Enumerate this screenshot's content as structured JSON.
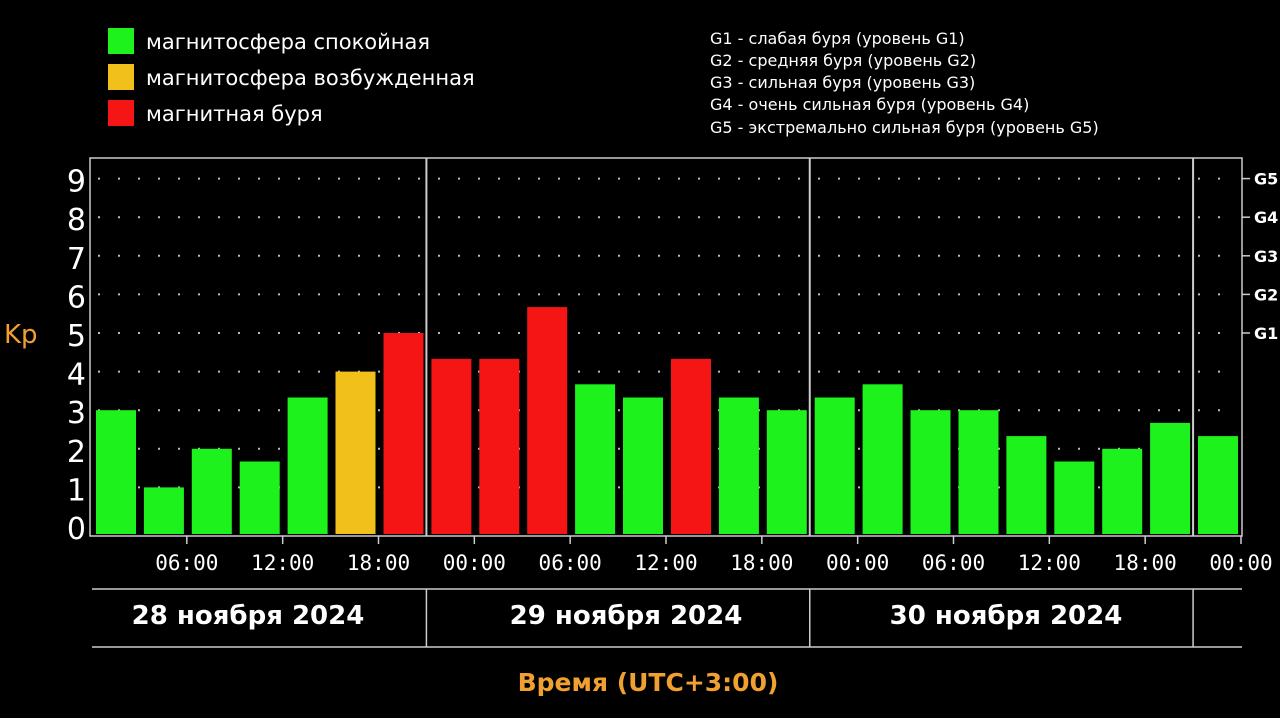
{
  "legend": [
    {
      "label": "магнитосфера спокойная",
      "color": "#1df21d"
    },
    {
      "label": "магнитосфера возбужденная",
      "color": "#f2c01a"
    },
    {
      "label": "магнитная буря",
      "color": "#f51515"
    }
  ],
  "storm_levels": [
    "G1 - слабая буря (уровень G1)",
    "G2 - средняя буря (уровень G2)",
    "G3 - сильная буря (уровень G3)",
    "G4 - очень сильная буря (уровень G4)",
    "G5 - экстремально сильная буря (уровень G5)"
  ],
  "colors": {
    "background": "#000000",
    "accent": "#f0a030",
    "text": "#ffffff",
    "grid": "#bbbbbb"
  },
  "chart_data": {
    "type": "bar",
    "ylabel": "Kp",
    "xlabel": "Время (UTC+3:00)",
    "ylim": [
      0,
      9
    ],
    "y_ticks": [
      "0",
      "1",
      "2",
      "3",
      "4",
      "5",
      "6",
      "7",
      "8",
      "9"
    ],
    "right_ticks": [
      {
        "label": "G1",
        "value": 5
      },
      {
        "label": "G2",
        "value": 6
      },
      {
        "label": "G3",
        "value": 7
      },
      {
        "label": "G4",
        "value": 8
      },
      {
        "label": "G5",
        "value": 9
      }
    ],
    "grid": true,
    "x_tick_labels": [
      "06:00",
      "12:00",
      "18:00",
      "00:00",
      "06:00",
      "12:00",
      "18:00",
      "00:00",
      "06:00",
      "12:00",
      "18:00",
      "00:00"
    ],
    "dates": [
      "28 ноября 2024",
      "29 ноября 2024",
      "30 ноября 2024"
    ],
    "bars": [
      {
        "x": "28.11 03:00",
        "value": 3.0,
        "level": "quiet"
      },
      {
        "x": "28.11 06:00",
        "value": 1.0,
        "level": "quiet"
      },
      {
        "x": "28.11 09:00",
        "value": 2.0,
        "level": "quiet"
      },
      {
        "x": "28.11 12:00",
        "value": 1.67,
        "level": "quiet"
      },
      {
        "x": "28.11 15:00",
        "value": 3.33,
        "level": "quiet"
      },
      {
        "x": "28.11 18:00",
        "value": 4.0,
        "level": "active"
      },
      {
        "x": "28.11 21:00",
        "value": 5.0,
        "level": "storm"
      },
      {
        "x": "29.11 00:00",
        "value": 4.33,
        "level": "storm"
      },
      {
        "x": "29.11 03:00",
        "value": 4.33,
        "level": "storm"
      },
      {
        "x": "29.11 06:00",
        "value": 5.67,
        "level": "storm"
      },
      {
        "x": "29.11 09:00",
        "value": 3.67,
        "level": "quiet"
      },
      {
        "x": "29.11 12:00",
        "value": 3.33,
        "level": "quiet"
      },
      {
        "x": "29.11 15:00",
        "value": 4.33,
        "level": "storm"
      },
      {
        "x": "29.11 18:00",
        "value": 3.33,
        "level": "quiet"
      },
      {
        "x": "29.11 21:00",
        "value": 3.0,
        "level": "quiet"
      },
      {
        "x": "30.11 00:00",
        "value": 3.33,
        "level": "quiet"
      },
      {
        "x": "30.11 03:00",
        "value": 3.67,
        "level": "quiet"
      },
      {
        "x": "30.11 06:00",
        "value": 3.0,
        "level": "quiet"
      },
      {
        "x": "30.11 09:00",
        "value": 3.0,
        "level": "quiet"
      },
      {
        "x": "30.11 12:00",
        "value": 2.33,
        "level": "quiet"
      },
      {
        "x": "30.11 15:00",
        "value": 1.67,
        "level": "quiet"
      },
      {
        "x": "30.11 18:00",
        "value": 2.0,
        "level": "quiet"
      },
      {
        "x": "30.11 21:00",
        "value": 2.67,
        "level": "quiet"
      },
      {
        "x": "01.12 00:00",
        "value": 2.33,
        "level": "quiet"
      }
    ],
    "level_colors": {
      "quiet": "#1df21d",
      "active": "#f2c01a",
      "storm": "#f51515"
    }
  }
}
